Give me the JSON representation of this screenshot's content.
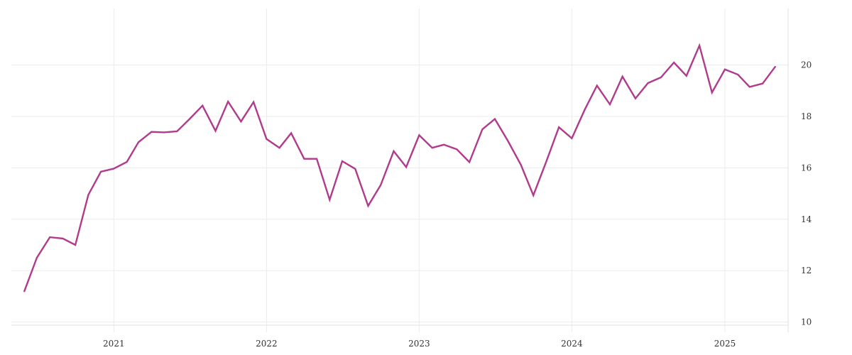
{
  "chart_data": {
    "type": "line",
    "title": "",
    "xlabel": "",
    "ylabel": "",
    "x_axis": {
      "type": "date",
      "range": [
        "2020-05-01",
        "2025-06-01"
      ],
      "ticks": [
        "2021",
        "2022",
        "2023",
        "2024",
        "2025"
      ],
      "tick_dates": [
        "2021-01-01",
        "2022-01-01",
        "2023-01-01",
        "2024-01-01",
        "2025-01-01"
      ],
      "grid": true
    },
    "y_axis": {
      "range": [
        9.6,
        22.2
      ],
      "ticks": [
        10,
        12,
        14,
        16,
        18,
        20
      ],
      "position": "right",
      "grid": true
    },
    "legend": "none",
    "series": [
      {
        "color": "#b03a8c",
        "x": [
          "2020-06-01",
          "2020-07-01",
          "2020-08-01",
          "2020-09-01",
          "2020-10-01",
          "2020-11-01",
          "2020-12-01",
          "2021-01-01",
          "2021-02-01",
          "2021-03-01",
          "2021-04-01",
          "2021-05-01",
          "2021-06-01",
          "2021-07-01",
          "2021-08-01",
          "2021-09-01",
          "2021-10-01",
          "2021-11-01",
          "2021-12-01",
          "2022-01-01",
          "2022-02-01",
          "2022-03-01",
          "2022-04-01",
          "2022-05-01",
          "2022-06-01",
          "2022-07-01",
          "2022-08-01",
          "2022-09-01",
          "2022-10-01",
          "2022-11-01",
          "2022-12-01",
          "2023-01-01",
          "2023-02-01",
          "2023-03-01",
          "2023-04-01",
          "2023-05-01",
          "2023-06-01",
          "2023-07-01",
          "2023-08-01",
          "2023-09-01",
          "2023-10-01",
          "2023-11-01",
          "2023-12-01",
          "2024-01-01",
          "2024-02-01",
          "2024-03-01",
          "2024-04-01",
          "2024-05-01",
          "2024-06-01",
          "2024-07-01",
          "2024-08-01",
          "2024-09-01",
          "2024-10-01",
          "2024-11-01",
          "2024-12-01",
          "2025-01-01",
          "2025-02-01",
          "2025-03-01",
          "2025-04-01",
          "2025-05-01"
        ],
        "y": [
          11.2,
          12.5,
          13.3,
          13.25,
          13.0,
          14.95,
          15.85,
          15.97,
          16.23,
          17.0,
          17.4,
          17.38,
          17.42,
          17.9,
          18.42,
          17.44,
          18.58,
          17.8,
          18.56,
          17.12,
          16.78,
          17.35,
          16.35,
          16.35,
          14.76,
          16.26,
          15.96,
          14.52,
          15.33,
          16.65,
          16.03,
          17.27,
          16.78,
          16.9,
          16.72,
          16.22,
          17.5,
          17.9,
          17.05,
          16.12,
          14.93,
          16.25,
          17.58,
          17.15,
          18.27,
          19.2,
          18.47,
          19.55,
          18.7,
          19.3,
          19.52,
          20.1,
          19.58,
          20.76,
          18.93,
          19.83,
          19.63,
          19.15,
          19.28,
          19.93
        ]
      }
    ]
  }
}
